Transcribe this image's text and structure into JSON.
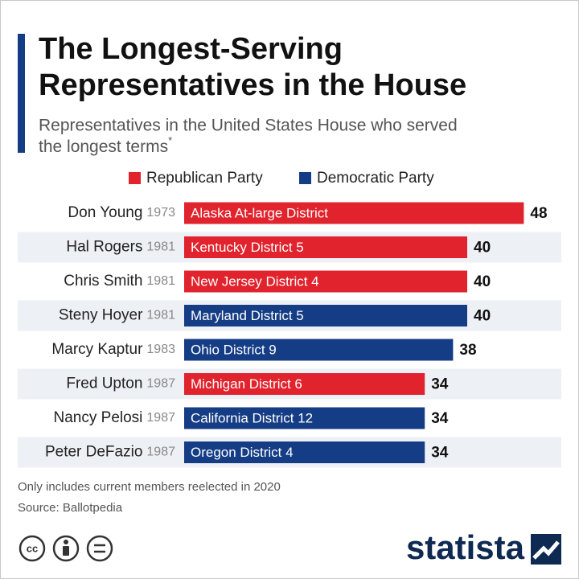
{
  "chart_data": {
    "type": "bar",
    "title": [
      "The Longest-Serving",
      "Representatives in the House"
    ],
    "subtitle": [
      "Representatives in the United States House who served",
      "the longest terms"
    ],
    "subtitle_marker": "*",
    "categories": [
      "Don Young",
      "Hal Rogers",
      "Chris Smith",
      "Steny Hoyer",
      "Marcy Kaptur",
      "Fred Upton",
      "Nancy Pelosi",
      "Peter DeFazio"
    ],
    "years": [
      "1973",
      "1981",
      "1981",
      "1981",
      "1983",
      "1987",
      "1987",
      "1987"
    ],
    "districts": [
      "Alaska At-large District",
      "Kentucky District 5",
      "New Jersey District 4",
      "Maryland District 5",
      "Ohio District 9",
      "Michigan District 6",
      "California District 12",
      "Oregon District 4"
    ],
    "series": [
      {
        "name": "Republican Party",
        "color": "#e1232d",
        "values": [
          48,
          40,
          40,
          null,
          null,
          34,
          null,
          null
        ]
      },
      {
        "name": "Democratic Party",
        "color": "#153d85",
        "values": [
          null,
          null,
          null,
          40,
          38,
          null,
          34,
          34
        ]
      }
    ],
    "notes": [
      "Only includes current members reelected in 2020",
      "Source: Ballotpedia"
    ],
    "license": "cc",
    "logo": "statista"
  }
}
